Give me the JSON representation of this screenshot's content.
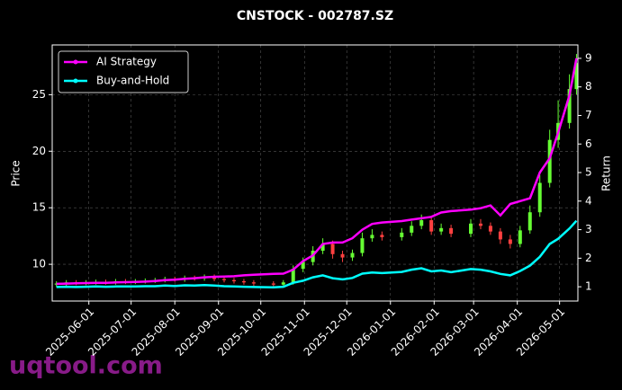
{
  "chart_data": {
    "type": "candlestick",
    "title": "CNSTOCK - 002787.SZ",
    "y_label": "Price",
    "y2_label": "Return",
    "watermark": "uqtool.com",
    "x": [
      "2025-05-09",
      "2025-05-16",
      "2025-05-23",
      "2025-05-30",
      "2025-06-06",
      "2025-06-13",
      "2025-06-20",
      "2025-06-27",
      "2025-07-04",
      "2025-07-11",
      "2025-07-18",
      "2025-07-25",
      "2025-08-01",
      "2025-08-08",
      "2025-08-15",
      "2025-08-22",
      "2025-08-29",
      "2025-09-05",
      "2025-09-12",
      "2025-09-19",
      "2025-09-26",
      "2025-10-10",
      "2025-10-17",
      "2025-10-24",
      "2025-10-31",
      "2025-11-07",
      "2025-11-14",
      "2025-11-21",
      "2025-11-28",
      "2025-12-05",
      "2025-12-12",
      "2025-12-19",
      "2025-12-26",
      "2026-01-09",
      "2026-01-16",
      "2026-01-23",
      "2026-01-30",
      "2026-02-06",
      "2026-02-13",
      "2026-02-27",
      "2026-03-06",
      "2026-03-13",
      "2026-03-20",
      "2026-03-27",
      "2026-04-03",
      "2026-04-10",
      "2026-04-17",
      "2026-04-24",
      "2026-04-30",
      "2026-05-08",
      "2026-05-13"
    ],
    "ohlc": {
      "open": [
        8.2,
        8.3,
        8.4,
        8.35,
        8.4,
        8.45,
        8.4,
        8.5,
        8.45,
        8.5,
        8.55,
        8.6,
        8.7,
        8.65,
        8.8,
        8.75,
        8.9,
        8.7,
        8.6,
        8.5,
        8.4,
        8.3,
        8.2,
        8.4,
        9.6,
        10.2,
        11.2,
        11.8,
        10.9,
        10.6,
        11.0,
        12.3,
        12.6,
        12.4,
        12.8,
        13.4,
        13.9,
        12.9,
        13.2,
        12.7,
        13.6,
        13.4,
        12.9,
        12.2,
        11.8,
        13.0,
        14.6,
        17.2,
        21.0,
        22.5,
        25.5
      ],
      "high": [
        8.5,
        8.6,
        8.6,
        8.6,
        8.65,
        8.65,
        8.7,
        8.7,
        8.7,
        8.75,
        8.8,
        8.9,
        8.9,
        9.0,
        9.0,
        9.1,
        9.1,
        8.9,
        8.8,
        8.7,
        8.6,
        8.5,
        8.6,
        9.9,
        10.6,
        11.6,
        12.3,
        12.1,
        11.2,
        11.3,
        12.8,
        13.1,
        12.9,
        13.2,
        13.8,
        14.4,
        14.1,
        13.6,
        13.5,
        14.0,
        14.0,
        13.7,
        13.2,
        12.6,
        13.4,
        15.2,
        17.9,
        21.9,
        24.5,
        26.8,
        28.6
      ],
      "low": [
        8.0,
        8.1,
        8.15,
        8.15,
        8.2,
        8.2,
        8.2,
        8.25,
        8.25,
        8.3,
        8.35,
        8.4,
        8.45,
        8.45,
        8.55,
        8.55,
        8.5,
        8.4,
        8.3,
        8.2,
        8.1,
        8.0,
        8.0,
        8.2,
        9.3,
        9.9,
        10.9,
        10.5,
        10.2,
        10.3,
        10.7,
        12.0,
        12.1,
        12.1,
        12.5,
        13.1,
        12.6,
        12.6,
        12.4,
        12.4,
        13.1,
        12.6,
        11.8,
        11.4,
        11.5,
        12.7,
        14.2,
        16.8,
        20.3,
        22.0,
        25.0
      ],
      "close": [
        8.3,
        8.4,
        8.35,
        8.4,
        8.45,
        8.4,
        8.5,
        8.45,
        8.5,
        8.55,
        8.6,
        8.7,
        8.65,
        8.8,
        8.75,
        8.9,
        8.7,
        8.6,
        8.5,
        8.4,
        8.3,
        8.2,
        8.4,
        9.6,
        10.2,
        11.2,
        11.8,
        10.9,
        10.6,
        11.0,
        12.3,
        12.6,
        12.4,
        12.8,
        13.4,
        13.9,
        12.9,
        13.2,
        12.7,
        13.6,
        13.4,
        12.9,
        12.2,
        11.8,
        13.0,
        14.6,
        17.2,
        21.0,
        22.5,
        25.5,
        27.8
      ]
    },
    "up_color": "#66ff33",
    "down_color": "#ff4040",
    "series": [
      {
        "name": "AI Strategy",
        "color": "#ff00ff",
        "axis": "y2",
        "values": [
          1.1,
          1.11,
          1.12,
          1.13,
          1.14,
          1.14,
          1.15,
          1.16,
          1.17,
          1.18,
          1.2,
          1.23,
          1.25,
          1.28,
          1.3,
          1.33,
          1.35,
          1.36,
          1.37,
          1.4,
          1.42,
          1.45,
          1.46,
          1.6,
          1.9,
          2.1,
          2.5,
          2.55,
          2.55,
          2.7,
          3.0,
          3.2,
          3.25,
          3.3,
          3.35,
          3.4,
          3.45,
          3.6,
          3.65,
          3.7,
          3.75,
          3.85,
          3.5,
          3.9,
          4.0,
          4.1,
          5.0,
          5.5,
          6.4,
          7.7,
          9.0
        ]
      },
      {
        "name": "Buy-and-Hold",
        "color": "#00ffff",
        "axis": "y2",
        "values": [
          0.99,
          1.0,
          0.99,
          1.0,
          1.01,
          1.0,
          1.01,
          1.01,
          1.01,
          1.02,
          1.02,
          1.04,
          1.03,
          1.05,
          1.04,
          1.06,
          1.04,
          1.02,
          1.01,
          1.0,
          0.99,
          0.98,
          1.0,
          1.14,
          1.21,
          1.33,
          1.4,
          1.3,
          1.26,
          1.31,
          1.46,
          1.5,
          1.48,
          1.52,
          1.6,
          1.65,
          1.54,
          1.57,
          1.51,
          1.62,
          1.6,
          1.54,
          1.45,
          1.4,
          1.55,
          1.74,
          2.05,
          2.5,
          2.68,
          3.04,
          3.31
        ]
      }
    ],
    "xlim": [
      "2025-05-06",
      "2026-05-14"
    ],
    "xticks": [
      "2025-06-01",
      "2025-07-01",
      "2025-08-01",
      "2025-09-01",
      "2025-10-01",
      "2025-11-01",
      "2025-12-01",
      "2026-01-01",
      "2026-02-01",
      "2026-03-01",
      "2026-04-01",
      "2026-05-01"
    ],
    "ylim": [
      6.75,
      29.4
    ],
    "yticks": [
      10,
      15,
      20,
      25
    ],
    "y2lim": [
      0.5,
      9.47
    ],
    "y2ticks": [
      1,
      2,
      3,
      4,
      5,
      6,
      7,
      8,
      9
    ],
    "grid": true,
    "legend": "upper left"
  }
}
